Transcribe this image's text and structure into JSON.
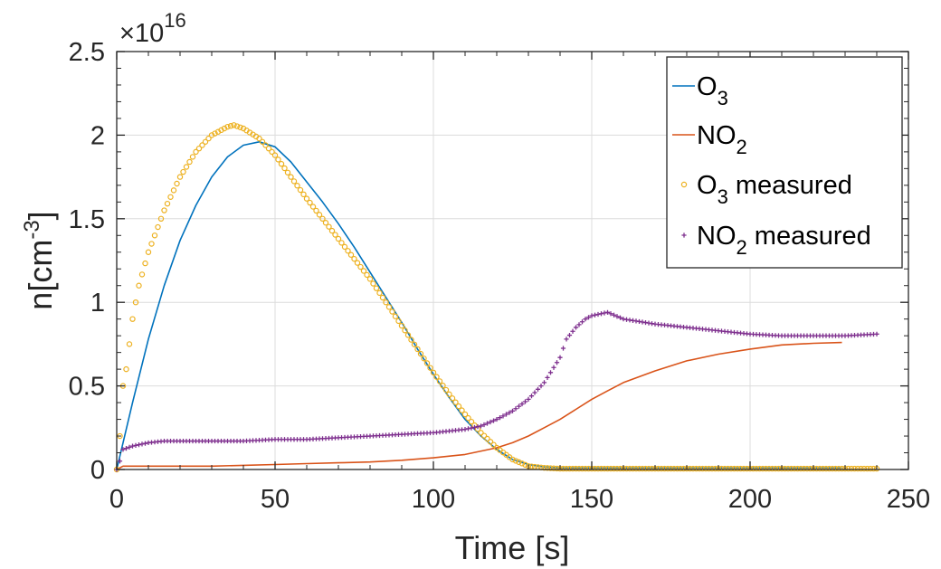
{
  "chart_data": {
    "type": "line",
    "xlabel": "Time [s]",
    "ylabel": "n[cm",
    "ylabel_sup": "-3",
    "ylabel_end": "]",
    "exponent_prefix": "×10",
    "exponent_power": "16",
    "xlim": [
      0,
      250
    ],
    "ylim": [
      0,
      2.5
    ],
    "x_ticks": [
      0,
      50,
      100,
      150,
      200,
      250
    ],
    "x_tick_labels": [
      "0",
      "50",
      "100",
      "150",
      "200",
      "250"
    ],
    "y_ticks": [
      0,
      0.5,
      1,
      1.5,
      2,
      2.5
    ],
    "y_tick_labels": [
      "0",
      "0.5",
      "1",
      "1.5",
      "2",
      "2.5"
    ],
    "grid": true,
    "legend_position": "top-right",
    "series": [
      {
        "name": "O3",
        "label_main": "O",
        "label_sub": "3",
        "label_rest": "",
        "style": "line",
        "color": "#0072BD",
        "x": [
          0,
          5,
          10,
          15,
          20,
          25,
          30,
          35,
          40,
          45,
          50,
          55,
          60,
          65,
          70,
          75,
          80,
          85,
          90,
          95,
          100,
          105,
          110,
          115,
          120,
          125,
          130,
          135,
          140,
          145,
          150,
          160,
          180,
          200,
          220,
          229
        ],
        "y": [
          0,
          0.4,
          0.78,
          1.1,
          1.37,
          1.58,
          1.75,
          1.87,
          1.94,
          1.96,
          1.93,
          1.84,
          1.72,
          1.6,
          1.47,
          1.33,
          1.18,
          1.03,
          0.88,
          0.72,
          0.57,
          0.43,
          0.3,
          0.2,
          0.12,
          0.06,
          0.03,
          0.015,
          0.01,
          0.01,
          0.01,
          0.01,
          0.01,
          0.01,
          0.01,
          0.01
        ]
      },
      {
        "name": "NO2",
        "label_main": "NO",
        "label_sub": "2",
        "label_rest": "",
        "style": "line",
        "color": "#D95319",
        "x": [
          0,
          2,
          10,
          20,
          30,
          40,
          50,
          60,
          70,
          80,
          90,
          100,
          110,
          120,
          125,
          130,
          135,
          140,
          145,
          150,
          155,
          160,
          170,
          180,
          190,
          200,
          210,
          220,
          229
        ],
        "y": [
          0,
          0.02,
          0.02,
          0.02,
          0.02,
          0.025,
          0.03,
          0.035,
          0.04,
          0.045,
          0.055,
          0.07,
          0.09,
          0.13,
          0.16,
          0.2,
          0.25,
          0.3,
          0.36,
          0.42,
          0.47,
          0.52,
          0.59,
          0.65,
          0.69,
          0.72,
          0.745,
          0.755,
          0.76
        ]
      },
      {
        "name": "O3 measured",
        "label_main": "O",
        "label_sub": "3",
        "label_rest": " measured",
        "style": "circle",
        "color": "#EDB120",
        "x": [
          0,
          1,
          2,
          3,
          4,
          5,
          7,
          10,
          15,
          20,
          25,
          30,
          35,
          37,
          40,
          45,
          50,
          55,
          60,
          65,
          70,
          75,
          80,
          85,
          90,
          95,
          100,
          105,
          110,
          115,
          120,
          125,
          130,
          135,
          140,
          150,
          175,
          200,
          225,
          240
        ],
        "y": [
          0,
          0.2,
          0.5,
          0.6,
          0.75,
          0.9,
          1.1,
          1.3,
          1.55,
          1.75,
          1.9,
          2.0,
          2.05,
          2.06,
          2.04,
          1.98,
          1.88,
          1.75,
          1.62,
          1.5,
          1.38,
          1.26,
          1.14,
          1.0,
          0.86,
          0.72,
          0.58,
          0.45,
          0.33,
          0.22,
          0.13,
          0.06,
          0.02,
          0.01,
          0.005,
          0.005,
          0.005,
          0.005,
          0.005,
          0.005
        ]
      },
      {
        "name": "NO2 measured",
        "label_main": "NO",
        "label_sub": "2",
        "label_rest": " measured",
        "style": "plus",
        "color": "#7E2F8E",
        "x": [
          0,
          1,
          2,
          5,
          10,
          15,
          20,
          30,
          40,
          50,
          60,
          70,
          80,
          90,
          100,
          110,
          115,
          120,
          125,
          130,
          135,
          140,
          142,
          145,
          148,
          150,
          155,
          160,
          170,
          180,
          190,
          200,
          210,
          220,
          230,
          240
        ],
        "y": [
          0,
          0.05,
          0.12,
          0.14,
          0.16,
          0.17,
          0.17,
          0.17,
          0.17,
          0.18,
          0.18,
          0.19,
          0.2,
          0.21,
          0.22,
          0.24,
          0.26,
          0.3,
          0.35,
          0.42,
          0.52,
          0.67,
          0.78,
          0.85,
          0.9,
          0.92,
          0.94,
          0.9,
          0.87,
          0.85,
          0.83,
          0.81,
          0.8,
          0.8,
          0.8,
          0.81
        ]
      }
    ]
  }
}
